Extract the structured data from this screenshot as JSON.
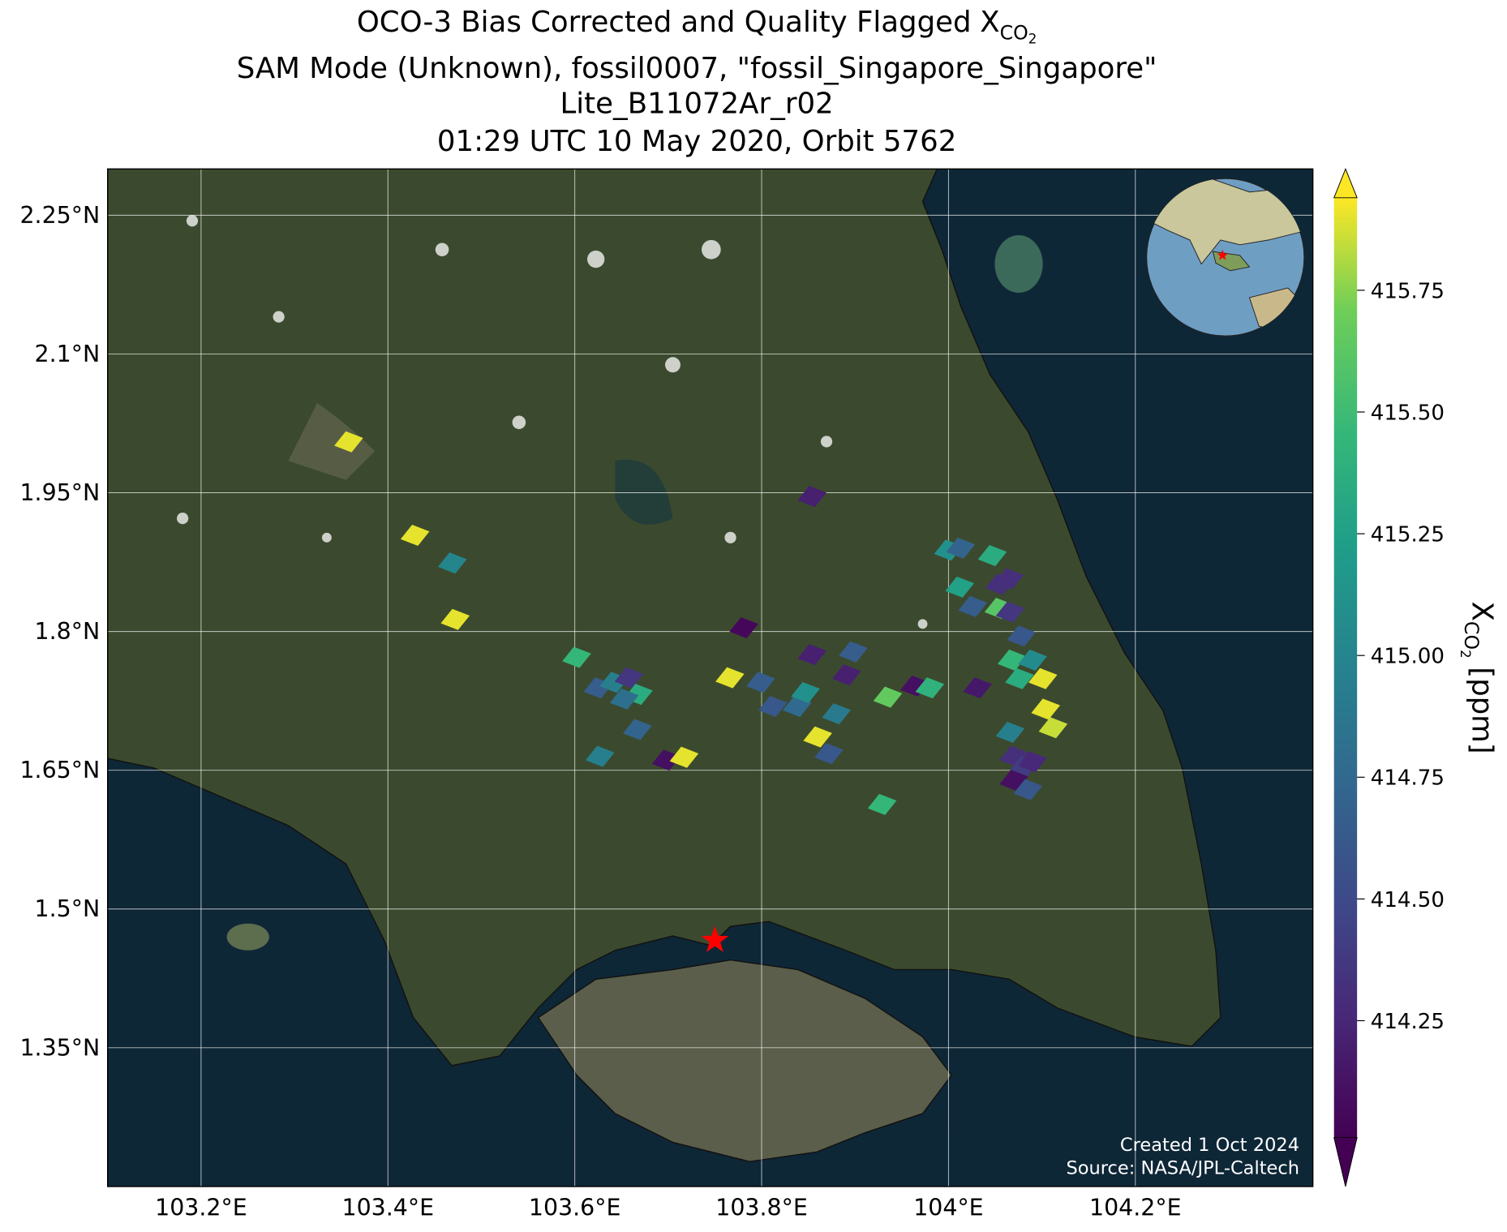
{
  "chart_data": {
    "type": "map",
    "title": "OCO-3 Bias Corrected and Quality Flagged",
    "quantity": {
      "symbol": "X",
      "subscript": "CO",
      "sub_subscript": "2"
    },
    "subtitle": [
      "SAM Mode (Unknown), fossil0007, \"fossil_Singapore_Singapore\"",
      "Lite_B11072Ar_r02",
      "01:29 UTC 10 May 2020, Orbit 5762"
    ],
    "xlim": [
      103.1,
      104.39
    ],
    "ylim": [
      1.2,
      2.3
    ],
    "xticks": [
      {
        "value": 103.2,
        "label": "103.2°E"
      },
      {
        "value": 103.4,
        "label": "103.4°E"
      },
      {
        "value": 103.6,
        "label": "103.6°E"
      },
      {
        "value": 103.8,
        "label": "103.8°E"
      },
      {
        "value": 104.0,
        "label": "104°E"
      },
      {
        "value": 104.2,
        "label": "104.2°E"
      }
    ],
    "yticks": [
      {
        "value": 1.35,
        "label": "1.35°N"
      },
      {
        "value": 1.5,
        "label": "1.5°N"
      },
      {
        "value": 1.65,
        "label": "1.65°N"
      },
      {
        "value": 1.8,
        "label": "1.8°N"
      },
      {
        "value": 1.95,
        "label": "1.95°N"
      },
      {
        "value": 2.1,
        "label": "2.1°N"
      },
      {
        "value": 2.25,
        "label": "2.25°N"
      }
    ],
    "grid": true,
    "colormap": "viridis",
    "clim": [
      414.01,
      415.94
    ],
    "cticks": [
      414.25,
      {
        "value": 414.5,
        "label": "414.50"
      },
      414.75,
      {
        "value": 415.0,
        "label": "415.00"
      },
      415.25,
      {
        "value": 415.5,
        "label": "415.50"
      },
      415.75
    ],
    "colorbar_unit": "[ppm]",
    "site": {
      "lon": 103.75,
      "lat": 1.466,
      "color": "#ff0000"
    },
    "footprints": {
      "lon": [
        103.358,
        103.429,
        103.469,
        103.472,
        103.854,
        103.781,
        103.602,
        103.625,
        103.642,
        103.658,
        103.668,
        103.653,
        103.667,
        103.627,
        103.698,
        103.717,
        103.766,
        103.799,
        103.812,
        103.838,
        103.847,
        103.854,
        103.891,
        103.88,
        103.86,
        103.872,
        103.898,
        103.935,
        103.964,
        103.98,
        104.031,
        103.929,
        104.0,
        104.013,
        104.012,
        104.026,
        104.047,
        104.055,
        104.054,
        104.065,
        104.066,
        104.078,
        104.068,
        104.076,
        104.09,
        104.101,
        104.104,
        104.112,
        104.066,
        104.07,
        104.081,
        104.09,
        104.07,
        104.085
      ],
      "lat": [
        2.005,
        1.904,
        1.874,
        1.813,
        1.946,
        1.804,
        1.772,
        1.739,
        1.745,
        1.75,
        1.732,
        1.727,
        1.694,
        1.665,
        1.661,
        1.664,
        1.75,
        1.745,
        1.719,
        1.719,
        1.734,
        1.775,
        1.753,
        1.711,
        1.686,
        1.668,
        1.778,
        1.729,
        1.741,
        1.739,
        1.739,
        1.613,
        1.888,
        1.89,
        1.848,
        1.827,
        1.882,
        1.851,
        1.825,
        1.857,
        1.821,
        1.795,
        1.769,
        1.749,
        1.769,
        1.749,
        1.716,
        1.696,
        1.691,
        1.665,
        1.654,
        1.659,
        1.639,
        1.629
      ],
      "values": [
        415.9,
        415.9,
        415.0,
        415.9,
        414.2,
        414.05,
        415.45,
        414.65,
        414.95,
        414.35,
        415.35,
        414.8,
        414.7,
        414.95,
        414.1,
        415.9,
        415.9,
        414.65,
        414.6,
        414.75,
        415.1,
        414.2,
        414.2,
        414.9,
        415.9,
        414.6,
        414.65,
        415.65,
        414.1,
        415.4,
        414.15,
        415.45,
        415.1,
        414.7,
        415.25,
        414.65,
        415.35,
        414.3,
        415.6,
        414.3,
        414.35,
        414.6,
        415.45,
        415.35,
        415.05,
        415.9,
        415.9,
        415.85,
        414.95,
        414.3,
        414.4,
        414.25,
        414.1,
        414.6
      ]
    },
    "credits": [
      "Created 1 Oct 2024",
      "Source: NASA/JPL-Caltech"
    ]
  }
}
